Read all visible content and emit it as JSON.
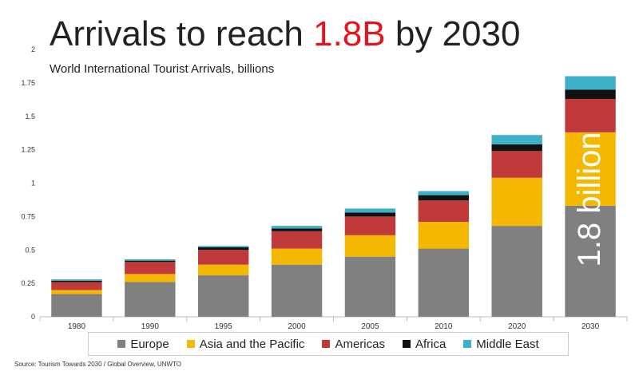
{
  "chart_data": {
    "type": "bar",
    "stacked": true,
    "title": {
      "before": "Arrivals to reach ",
      "highlight": "1.8B",
      "after": " by 2030",
      "highlight_color": "#e8131a"
    },
    "subtitle": "World International Tourist Arrivals, billions",
    "categories": [
      "1980",
      "1990",
      "1995",
      "2000",
      "2005",
      "2010",
      "2020",
      "2030"
    ],
    "series": [
      {
        "name": "Europe",
        "color": "#808080",
        "values": [
          0.17,
          0.26,
          0.31,
          0.39,
          0.45,
          0.51,
          0.68,
          0.83
        ]
      },
      {
        "name": "Asia and the Pacific",
        "color": "#f5b800",
        "values": [
          0.03,
          0.06,
          0.08,
          0.12,
          0.16,
          0.2,
          0.36,
          0.55
        ]
      },
      {
        "name": "Americas",
        "color": "#c0393b",
        "values": [
          0.06,
          0.09,
          0.11,
          0.13,
          0.14,
          0.16,
          0.2,
          0.25
        ]
      },
      {
        "name": "Africa",
        "color": "#111111",
        "values": [
          0.01,
          0.01,
          0.02,
          0.02,
          0.03,
          0.04,
          0.05,
          0.07
        ]
      },
      {
        "name": "Middle East",
        "color": "#3fb0c9",
        "values": [
          0.01,
          0.01,
          0.01,
          0.02,
          0.03,
          0.03,
          0.07,
          0.1
        ]
      }
    ],
    "yticks": [
      "0",
      "0.25",
      "0.5",
      "0.75",
      "1",
      "1.25",
      "1.5",
      "1.75",
      "2"
    ],
    "ylim": [
      0,
      2
    ],
    "grid": false,
    "legend_position": "bottom",
    "annotation": {
      "text": "1.8 billion",
      "category": "2030",
      "color": "#ffffff"
    }
  },
  "source": "Source: Tourism Towards 2030 / Global Overview, UNWTO"
}
